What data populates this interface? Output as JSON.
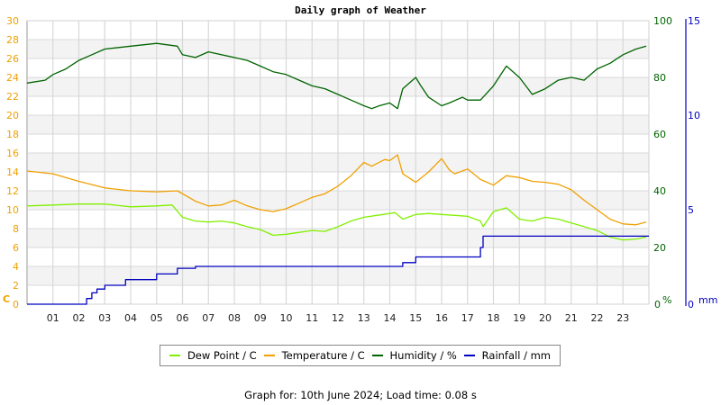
{
  "chart_data": {
    "type": "line",
    "title": "Daily graph of Weather",
    "xlabel": "",
    "x_tick_labels": [
      "01",
      "02",
      "03",
      "04",
      "05",
      "06",
      "07",
      "08",
      "09",
      "10",
      "11",
      "12",
      "13",
      "14",
      "15",
      "16",
      "17",
      "18",
      "19",
      "20",
      "21",
      "22",
      "23"
    ],
    "xlim": [
      0,
      24
    ],
    "axes": {
      "left": {
        "label": "C",
        "range": [
          0,
          30
        ],
        "ticks": [
          0,
          2,
          4,
          6,
          8,
          10,
          12,
          14,
          16,
          18,
          20,
          22,
          24,
          26,
          28,
          30
        ],
        "color": "#f0a000"
      },
      "right1": {
        "label": "%",
        "range": [
          0,
          100
        ],
        "ticks": [
          0,
          20,
          40,
          60,
          80,
          100
        ],
        "color": "#006400"
      },
      "right2": {
        "label": "mm",
        "range": [
          0,
          15
        ],
        "ticks": [
          0,
          5,
          10,
          15
        ],
        "color": "#0000c0"
      }
    },
    "grid": true,
    "legend_position": "bottom",
    "series": [
      {
        "name": "Dew Point / C",
        "axis": "left",
        "color": "#80f000",
        "x": [
          0,
          1,
          2,
          3,
          4,
          5,
          5.6,
          6,
          6.5,
          7,
          7.5,
          8,
          8.5,
          9,
          9.5,
          10,
          10.5,
          11,
          11.5,
          12,
          12.5,
          13,
          13.5,
          14,
          14.2,
          14.5,
          15,
          15.5,
          16,
          16.5,
          17,
          17.5,
          17.6,
          18,
          18.5,
          19,
          19.5,
          20,
          20.5,
          21,
          21.5,
          22,
          22.5,
          23,
          23.5,
          23.9
        ],
        "values": [
          10.4,
          10.5,
          10.6,
          10.6,
          10.3,
          10.4,
          10.5,
          9.2,
          8.8,
          8.7,
          8.8,
          8.6,
          8.2,
          7.9,
          7.3,
          7.4,
          7.6,
          7.8,
          7.7,
          8.2,
          8.8,
          9.2,
          9.4,
          9.6,
          9.7,
          9.0,
          9.5,
          9.6,
          9.5,
          9.4,
          9.3,
          8.8,
          8.2,
          9.8,
          10.2,
          9.0,
          8.8,
          9.2,
          9.0,
          8.6,
          8.2,
          7.8,
          7.1,
          6.8,
          6.9,
          7.1
        ]
      },
      {
        "name": "Temperature / C",
        "axis": "left",
        "color": "#f0a000",
        "x": [
          0,
          1,
          2,
          3,
          4,
          5,
          5.8,
          6.5,
          7,
          7.5,
          8,
          8.5,
          9,
          9.5,
          10,
          10.5,
          11,
          11.5,
          12,
          12.5,
          13,
          13.3,
          13.8,
          14,
          14.3,
          14.5,
          15,
          15.5,
          16,
          16.3,
          16.5,
          17,
          17.5,
          18,
          18.5,
          19,
          19.5,
          20,
          20.5,
          21,
          21.5,
          22,
          22.5,
          23,
          23.5,
          23.9
        ],
        "values": [
          14.1,
          13.8,
          13.0,
          12.3,
          12.0,
          11.9,
          12.0,
          10.9,
          10.4,
          10.5,
          11.0,
          10.4,
          10.0,
          9.8,
          10.1,
          10.7,
          11.3,
          11.7,
          12.5,
          13.6,
          15.0,
          14.6,
          15.3,
          15.2,
          15.8,
          13.8,
          12.9,
          14.0,
          15.4,
          14.2,
          13.8,
          14.3,
          13.2,
          12.6,
          13.6,
          13.4,
          13.0,
          12.9,
          12.7,
          12.1,
          11.0,
          10.0,
          9.0,
          8.5,
          8.4,
          8.7
        ]
      },
      {
        "name": "Humidity / %",
        "axis": "right1",
        "color": "#006400",
        "x": [
          0,
          0.7,
          1,
          1.5,
          2,
          2.5,
          3,
          4,
          5,
          5.8,
          6,
          6.5,
          7,
          8,
          8.5,
          9,
          9.5,
          10,
          10.5,
          11,
          11.5,
          12,
          12.5,
          13,
          13.3,
          13.6,
          14,
          14.3,
          14.5,
          15,
          15.2,
          15.5,
          16,
          16.3,
          16.8,
          17,
          17.5,
          18,
          18.5,
          19,
          19.5,
          20,
          20.5,
          21,
          21.5,
          22,
          22.5,
          23,
          23.5,
          23.9
        ],
        "values": [
          78,
          79,
          81,
          83,
          86,
          88,
          90,
          91,
          92,
          91,
          88,
          87,
          89,
          87,
          86,
          84,
          82,
          81,
          79,
          77,
          76,
          74,
          72,
          70,
          69,
          70,
          71,
          69,
          76,
          80,
          77,
          73,
          70,
          71,
          73,
          72,
          72,
          77,
          84,
          80,
          74,
          76,
          79,
          80,
          79,
          83,
          85,
          88,
          90,
          91
        ]
      },
      {
        "name": "Rainfall / mm",
        "axis": "right2",
        "color": "#0000c0",
        "x": [
          0,
          2.3,
          2.5,
          2.7,
          3.0,
          3.8,
          5.0,
          5.8,
          6.5,
          14.5,
          15.0,
          17.5,
          17.6,
          23.9
        ],
        "values": [
          0,
          0.3,
          0.6,
          0.8,
          1.0,
          1.3,
          1.6,
          1.9,
          2.0,
          2.2,
          2.5,
          3.0,
          3.6,
          3.6
        ]
      }
    ]
  },
  "header": {
    "title": "Daily graph of Weather"
  },
  "axes_labels": {
    "left": "C",
    "right1": "%",
    "right2": "mm"
  },
  "legend": {
    "items": [
      {
        "label": "Dew Point / C",
        "color": "#80f000"
      },
      {
        "label": "Temperature / C",
        "color": "#f0a000"
      },
      {
        "label": "Humidity / %",
        "color": "#006400"
      },
      {
        "label": "Rainfall / mm",
        "color": "#0000c0"
      }
    ]
  },
  "footer": {
    "text": "Graph for: 10th June 2024; Load time: 0.08 s"
  }
}
